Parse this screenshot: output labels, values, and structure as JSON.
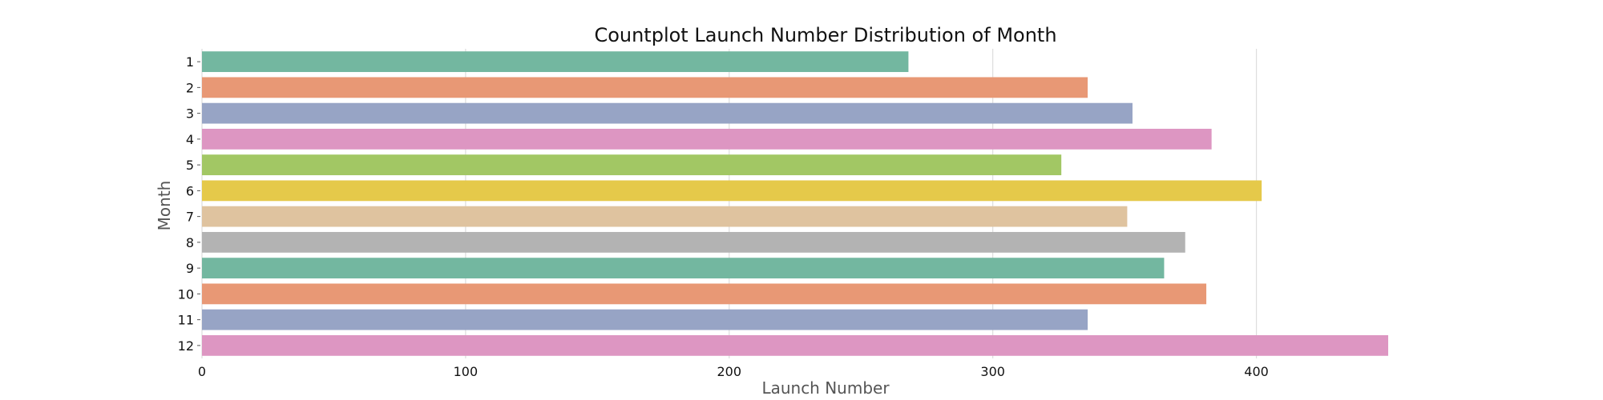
{
  "chart_data": {
    "type": "bar",
    "orientation": "horizontal",
    "title": "Countplot Launch Number Distribution of Month",
    "xlabel": "Launch Number",
    "ylabel": "Month",
    "categories": [
      "1",
      "2",
      "3",
      "4",
      "5",
      "6",
      "7",
      "8",
      "9",
      "10",
      "11",
      "12"
    ],
    "values": [
      268,
      336,
      353,
      383,
      326,
      402,
      351,
      373,
      365,
      381,
      336,
      450
    ],
    "xlim": [
      0,
      450
    ],
    "xticks": [
      0,
      100,
      200,
      300,
      400
    ],
    "grid": "vertical",
    "colors": [
      "#73b7a0",
      "#e89875",
      "#97a4c5",
      "#dd96c2",
      "#a2c764",
      "#e5c94a",
      "#dfc39f",
      "#b3b3b3",
      "#73b7a0",
      "#e89875",
      "#97a4c5",
      "#dd96c2"
    ]
  }
}
